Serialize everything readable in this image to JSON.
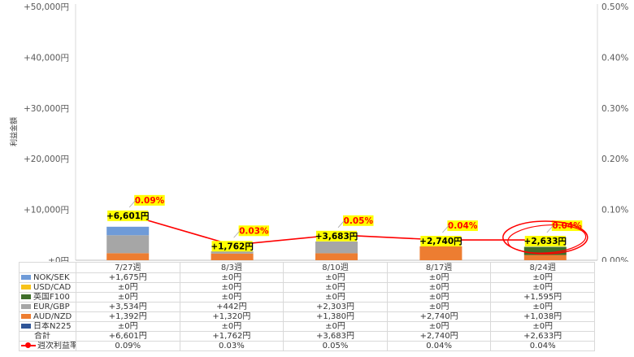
{
  "chart_data": {
    "type": "bar",
    "stacked": true,
    "categories": [
      "7/27週",
      "8/3週",
      "8/10週",
      "8/17週",
      "8/24週"
    ],
    "ylabel": "利益金額",
    "y_ticks": [
      "+50,000円",
      "+40,000円",
      "+30,000円",
      "+20,000円",
      "+10,000円",
      "±0円"
    ],
    "y2_ticks": [
      "0.50%",
      "0.40%",
      "0.30%",
      "0.20%",
      "0.10%",
      "0.00%"
    ],
    "ylim": [
      0,
      50000
    ],
    "y2lim": [
      0,
      0.5
    ],
    "grid": false,
    "legend": "data-table",
    "series": [
      {
        "name": "NOK/SEK",
        "color": "#6f9bd8",
        "values": [
          1675,
          0,
          0,
          0,
          0
        ],
        "labels": [
          "+1,675円",
          "±0円",
          "±0円",
          "±0円",
          "±0円"
        ]
      },
      {
        "name": "USD/CAD",
        "color": "#f7c31a",
        "values": [
          0,
          0,
          0,
          0,
          0
        ],
        "labels": [
          "±0円",
          "±0円",
          "±0円",
          "±0円",
          "±0円"
        ]
      },
      {
        "name": "英国F100",
        "color": "#3f6e2a",
        "values": [
          0,
          0,
          0,
          0,
          1595
        ],
        "labels": [
          "±0円",
          "±0円",
          "±0円",
          "±0円",
          "+1,595円"
        ]
      },
      {
        "name": "EUR/GBP",
        "color": "#a6a6a6",
        "values": [
          3534,
          442,
          2303,
          0,
          0
        ],
        "labels": [
          "+3,534円",
          "+442円",
          "+2,303円",
          "±0円",
          "±0円"
        ]
      },
      {
        "name": "AUD/NZD",
        "color": "#ed7d31",
        "values": [
          1392,
          1320,
          1380,
          2740,
          1038
        ],
        "labels": [
          "+1,392円",
          "+1,320円",
          "+1,380円",
          "+2,740円",
          "+1,038円"
        ]
      },
      {
        "name": "日本N225",
        "color": "#2f5597",
        "values": [
          0,
          0,
          0,
          0,
          0
        ],
        "labels": [
          "±0円",
          "±0円",
          "±0円",
          "±0円",
          "±0円"
        ]
      }
    ],
    "total": {
      "name": "合計",
      "values": [
        6601,
        1762,
        3683,
        2740,
        2633
      ],
      "labels": [
        "+6,601円",
        "+1,762円",
        "+3,683円",
        "+2,740円",
        "+2,633円"
      ]
    },
    "rate": {
      "name": "週次利益率",
      "color": "#ff0000",
      "values": [
        0.09,
        0.03,
        0.05,
        0.04,
        0.04
      ],
      "labels": [
        "0.09%",
        "0.03%",
        "0.05%",
        "0.04%",
        "0.04%"
      ]
    },
    "label_highlight": "#ffff00",
    "circle_color": "#ff0000"
  }
}
